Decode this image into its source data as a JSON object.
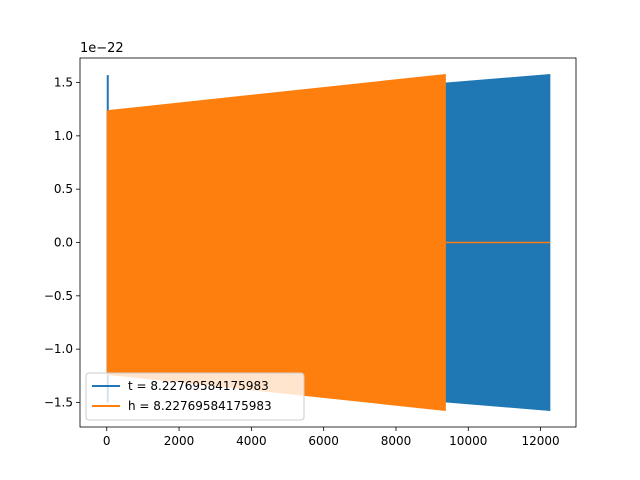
{
  "chart_data": {
    "type": "line",
    "title": "",
    "xlabel": "",
    "ylabel": "",
    "y_offset_text": "1e−22",
    "xlim": [
      -740,
      12980
    ],
    "ylim": [
      -1.73,
      1.73
    ],
    "x_ticks": [
      0,
      2000,
      4000,
      6000,
      8000,
      10000,
      12000
    ],
    "x_tick_labels": [
      "0",
      "2000",
      "4000",
      "6000",
      "8000",
      "10000",
      "12000"
    ],
    "y_ticks": [
      -1.5,
      -1.0,
      -0.5,
      0.0,
      0.5,
      1.0,
      1.5
    ],
    "y_tick_labels": [
      "−1.5",
      "−1.0",
      "−0.5",
      "0.0",
      "0.5",
      "1.0",
      "1.5"
    ],
    "grid": false,
    "legend_position": "lower-left",
    "series": [
      {
        "name": "t = 8.22769584175983",
        "color": "#1f77b4",
        "envelope": {
          "x": [
            0,
            12270
          ],
          "amplitude_start": 1.24,
          "amplitude_end": 1.58,
          "initial_spike": {
            "x": 0,
            "ymax": 1.57,
            "ymin": -1.5
          }
        }
      },
      {
        "name": "h = 8.22769584175983",
        "color": "#ff7f0e",
        "envelope": {
          "x": [
            0,
            9380
          ],
          "amplitude_start": 1.24,
          "amplitude_end": 1.58,
          "zero_after": [
            9380,
            12270
          ]
        }
      }
    ]
  }
}
